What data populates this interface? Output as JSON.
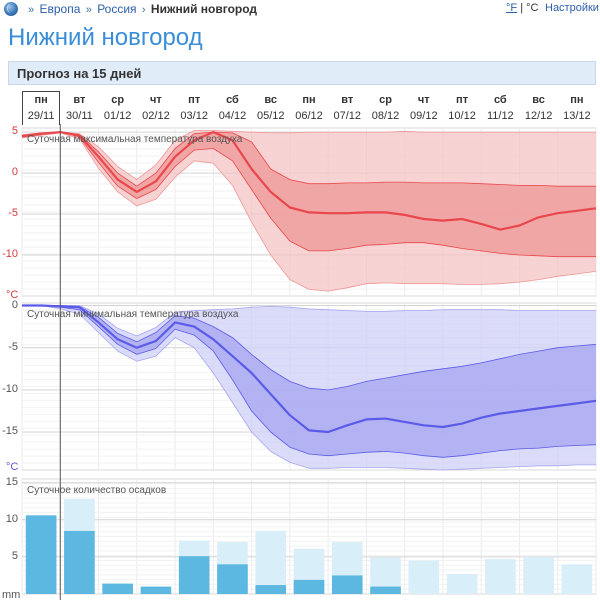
{
  "breadcrumb": {
    "europe": "Европа",
    "russia": "Россия",
    "city": "Нижний новгород"
  },
  "units": {
    "fahrenheit": "°F",
    "separator": "|",
    "celsius": "°C"
  },
  "settings_label": "Настройки",
  "page_title": "Нижний новгород",
  "section_title": "Прогноз на 15 дней",
  "days": [
    {
      "name": "пн",
      "date": "29/11"
    },
    {
      "name": "вт",
      "date": "30/11"
    },
    {
      "name": "ср",
      "date": "01/12"
    },
    {
      "name": "чт",
      "date": "02/12"
    },
    {
      "name": "пт",
      "date": "03/12"
    },
    {
      "name": "сб",
      "date": "04/12"
    },
    {
      "name": "вс",
      "date": "05/12"
    },
    {
      "name": "пн",
      "date": "06/12"
    },
    {
      "name": "вт",
      "date": "07/12"
    },
    {
      "name": "ср",
      "date": "08/12"
    },
    {
      "name": "чт",
      "date": "09/12"
    },
    {
      "name": "пт",
      "date": "10/12"
    },
    {
      "name": "сб",
      "date": "11/12"
    },
    {
      "name": "вс",
      "date": "12/12"
    },
    {
      "name": "пн",
      "date": "13/12"
    }
  ],
  "colors": {
    "red": "#e8474b",
    "blue": "#5b5be8",
    "bar": "#5cb8e0",
    "bar_light": "#d8eef8",
    "link": "#2a5ea8",
    "title": "#3a8ed8"
  },
  "chart_data": [
    {
      "type": "area",
      "title": "Суточная максимальная температура воздуха",
      "unit": "°C",
      "yticks": [
        5,
        0,
        -5,
        -10
      ],
      "ylim": [
        -15,
        5.5
      ],
      "x": [
        0,
        0.5,
        1,
        1.5,
        2,
        2.5,
        3,
        3.5,
        4,
        4.5,
        5,
        5.5,
        6,
        6.5,
        7,
        7.5,
        8,
        8.5,
        9,
        9.5,
        10,
        10.5,
        11,
        11.5,
        12,
        12.5,
        13,
        13.5,
        14,
        14.5,
        15
      ],
      "median": [
        4.5,
        4.8,
        5.0,
        4.6,
        2.0,
        -0.8,
        -2.3,
        -1.0,
        2.0,
        4.0,
        5.0,
        4.0,
        0.5,
        -2.3,
        -4.2,
        -4.8,
        -4.9,
        -4.9,
        -4.8,
        -4.8,
        -5.1,
        -5.6,
        -5.8,
        -5.6,
        -6.2,
        -6.9,
        -6.4,
        -5.4,
        -4.9,
        -4.6,
        -4.3
      ],
      "inner_band": {
        "upper": [
          4.6,
          4.9,
          5.0,
          4.7,
          2.6,
          0.0,
          -1.6,
          0.0,
          3.0,
          4.8,
          5.0,
          4.9,
          3.8,
          0.5,
          -0.8,
          -1.3,
          -1.3,
          -1.2,
          -1.2,
          -1.1,
          -1.1,
          -1.2,
          -1.2,
          -1.2,
          -1.3,
          -1.4,
          -1.5,
          -1.5,
          -1.6,
          -1.6,
          -1.6
        ],
        "lower": [
          4.4,
          4.7,
          5.0,
          4.4,
          1.3,
          -1.6,
          -3.1,
          -2.0,
          0.8,
          2.8,
          3.0,
          1.5,
          -2.0,
          -5.5,
          -8.3,
          -9.5,
          -9.5,
          -9.2,
          -8.8,
          -8.7,
          -8.5,
          -8.5,
          -8.8,
          -9.2,
          -9.5,
          -9.8,
          -10.0,
          -10.1,
          -10.2,
          -10.2,
          -10.2
        ]
      },
      "outer_band": {
        "upper": [
          4.7,
          4.9,
          5.0,
          4.8,
          3.2,
          0.8,
          -0.8,
          1.0,
          4.0,
          5.2,
          5.2,
          5.1,
          5.0,
          4.9,
          4.9,
          5.0,
          5.0,
          5.0,
          5.0,
          5.0,
          5.1,
          5.0,
          5.0,
          5.0,
          5.0,
          5.0,
          5.0,
          5.0,
          5.0,
          5.0,
          5.0
        ],
        "lower": [
          4.3,
          4.6,
          4.9,
          4.2,
          0.6,
          -2.3,
          -4.0,
          -3.2,
          -0.5,
          1.5,
          1.2,
          -1.5,
          -6.0,
          -10.0,
          -13.0,
          -14.2,
          -14.4,
          -14.0,
          -13.5,
          -13.4,
          -13.5,
          -13.5,
          -13.5,
          -13.6,
          -13.6,
          -13.5,
          -13.3,
          -13.0,
          -12.6,
          -12.3,
          -12.0
        ]
      }
    },
    {
      "type": "area",
      "title": "Суточная минимальная температура воздуха",
      "unit": "°C",
      "yticks": [
        0,
        -5,
        -10,
        -15
      ],
      "ylim": [
        -19.5,
        0.3
      ],
      "x": [
        0,
        0.5,
        1,
        1.5,
        2,
        2.5,
        3,
        3.5,
        4,
        4.5,
        5,
        5.5,
        6,
        6.5,
        7,
        7.5,
        8,
        8.5,
        9,
        9.5,
        10,
        10.5,
        11,
        11.5,
        12,
        12.5,
        13,
        13.5,
        14,
        14.5,
        15
      ],
      "median": [
        0.0,
        0.0,
        -0.1,
        -0.2,
        -2.0,
        -4.0,
        -5.0,
        -4.2,
        -2.0,
        -2.5,
        -4.0,
        -6.0,
        -8.0,
        -10.5,
        -13.0,
        -14.8,
        -15.0,
        -14.2,
        -13.5,
        -13.4,
        -13.8,
        -14.2,
        -14.4,
        -14.0,
        -13.3,
        -12.8,
        -12.5,
        -12.2,
        -11.9,
        -11.6,
        -11.3
      ],
      "inner_band": {
        "upper": [
          0.0,
          0.0,
          0.0,
          -0.1,
          -1.4,
          -3.3,
          -4.3,
          -3.2,
          -1.2,
          -1.5,
          -2.5,
          -3.8,
          -5.8,
          -7.6,
          -9.0,
          -9.8,
          -10.0,
          -9.6,
          -9.0,
          -8.6,
          -8.2,
          -7.8,
          -7.5,
          -7.2,
          -6.8,
          -6.3,
          -5.8,
          -5.4,
          -5.0,
          -4.8,
          -4.6
        ],
        "lower": [
          0.0,
          0.0,
          -0.2,
          -0.5,
          -2.5,
          -4.6,
          -5.8,
          -5.1,
          -2.8,
          -3.5,
          -5.4,
          -8.8,
          -12.5,
          -15.0,
          -16.8,
          -17.6,
          -17.8,
          -17.6,
          -17.4,
          -17.3,
          -17.5,
          -17.8,
          -18.0,
          -17.8,
          -17.5,
          -17.2,
          -17.0,
          -16.9,
          -16.7,
          -16.6,
          -16.5
        ]
      },
      "outer_band": {
        "upper": [
          0.0,
          0.0,
          0.0,
          0.0,
          -1.0,
          -2.7,
          -3.6,
          -2.6,
          -0.8,
          -0.6,
          -0.5,
          -0.4,
          -0.2,
          -0.1,
          -0.2,
          -0.4,
          -0.5,
          -0.6,
          -0.7,
          -0.7,
          -0.6,
          -0.6,
          -0.5,
          -0.5,
          -0.5,
          -0.5,
          -0.6,
          -0.6,
          -0.6,
          -0.6,
          -0.6
        ],
        "lower": [
          0.0,
          0.0,
          -0.4,
          -1.0,
          -3.2,
          -5.4,
          -6.6,
          -6.0,
          -3.8,
          -5.0,
          -8.0,
          -11.5,
          -15.0,
          -17.3,
          -18.6,
          -19.3,
          -19.3,
          -19.2,
          -19.2,
          -19.2,
          -19.3,
          -19.4,
          -19.5,
          -19.4,
          -19.3,
          -19.2,
          -19.1,
          -19.0,
          -19.0,
          -18.9,
          -18.9
        ]
      }
    },
    {
      "type": "bar",
      "title": "Суточное количество осадков",
      "unit": "mm",
      "yticks": [
        15,
        10,
        5
      ],
      "ylim": [
        0,
        15.5
      ],
      "categories": [
        "29/11",
        "30/11",
        "01/12",
        "02/12",
        "03/12",
        "04/12",
        "05/12",
        "06/12",
        "07/12",
        "08/12",
        "09/12",
        "10/12",
        "11/12",
        "12/12",
        "13/12"
      ],
      "values": [
        10.6,
        8.5,
        1.4,
        1.0,
        5.1,
        4.0,
        1.2,
        1.9,
        2.5,
        1.0,
        0,
        0,
        0,
        0,
        0
      ],
      "upper_values": [
        10.6,
        12.8,
        1.4,
        1.0,
        7.2,
        7.0,
        8.5,
        6.1,
        7.0,
        4.9,
        4.5,
        2.7,
        4.7,
        5.0,
        4.0
      ]
    }
  ]
}
